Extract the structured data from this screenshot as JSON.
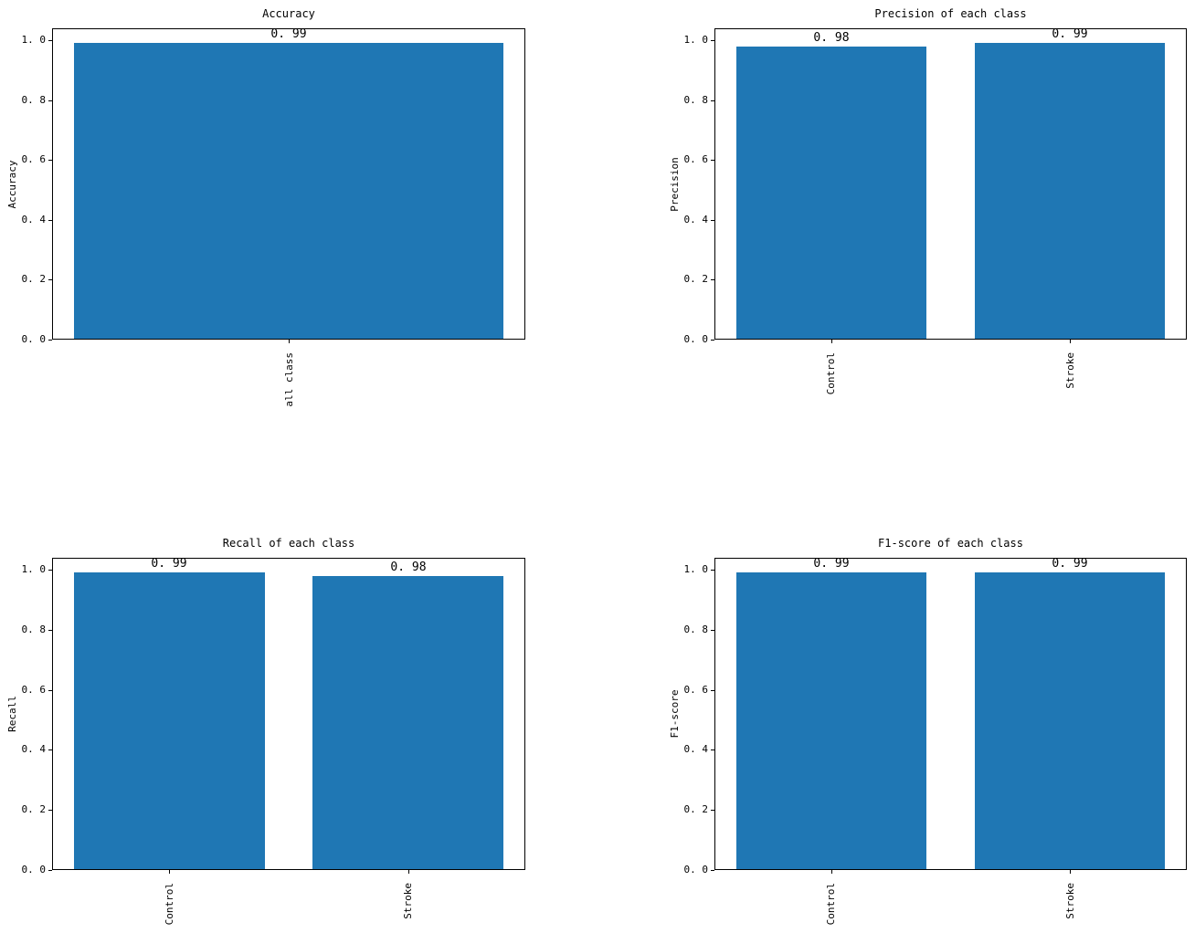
{
  "figure": {
    "background": "#ffffff",
    "bar_color": "#1f77b4",
    "spine_color": "#000000",
    "text_color": "#000000"
  },
  "chart_data": [
    {
      "id": "accuracy",
      "type": "bar",
      "title": "Accuracy",
      "xlabel": "",
      "ylabel": "Accuracy",
      "categories": [
        "all class"
      ],
      "values": [
        0.99
      ],
      "bar_labels": [
        "0.99"
      ],
      "yticks": [
        "0.0",
        "0.2",
        "0.4",
        "0.6",
        "0.8",
        "1.0"
      ],
      "ylim": [
        0,
        1.04
      ],
      "grid": false,
      "legend": "none",
      "bar_color": "#1f77b4"
    },
    {
      "id": "precision",
      "type": "bar",
      "title": "Precision of each class",
      "xlabel": "",
      "ylabel": "Precision",
      "categories": [
        "Control",
        "Stroke"
      ],
      "values": [
        0.98,
        0.99
      ],
      "bar_labels": [
        "0.98",
        "0.99"
      ],
      "yticks": [
        "0.0",
        "0.2",
        "0.4",
        "0.6",
        "0.8",
        "1.0"
      ],
      "ylim": [
        0,
        1.04
      ],
      "grid": false,
      "legend": "none",
      "bar_color": "#1f77b4"
    },
    {
      "id": "recall",
      "type": "bar",
      "title": "Recall of each class",
      "xlabel": "",
      "ylabel": "Recall",
      "categories": [
        "Control",
        "Stroke"
      ],
      "values": [
        0.99,
        0.98
      ],
      "bar_labels": [
        "0.99",
        "0.98"
      ],
      "yticks": [
        "0.0",
        "0.2",
        "0.4",
        "0.6",
        "0.8",
        "1.0"
      ],
      "ylim": [
        0,
        1.04
      ],
      "grid": false,
      "legend": "none",
      "bar_color": "#1f77b4"
    },
    {
      "id": "f1-score",
      "type": "bar",
      "title": "F1-score of each class",
      "xlabel": "",
      "ylabel": "F1-score",
      "categories": [
        "Control",
        "Stroke"
      ],
      "values": [
        0.99,
        0.99
      ],
      "bar_labels": [
        "0.99",
        "0.99"
      ],
      "yticks": [
        "0.0",
        "0.2",
        "0.4",
        "0.6",
        "0.8",
        "1.0"
      ],
      "ylim": [
        0,
        1.04
      ],
      "grid": false,
      "legend": "none",
      "bar_color": "#1f77b4"
    }
  ]
}
